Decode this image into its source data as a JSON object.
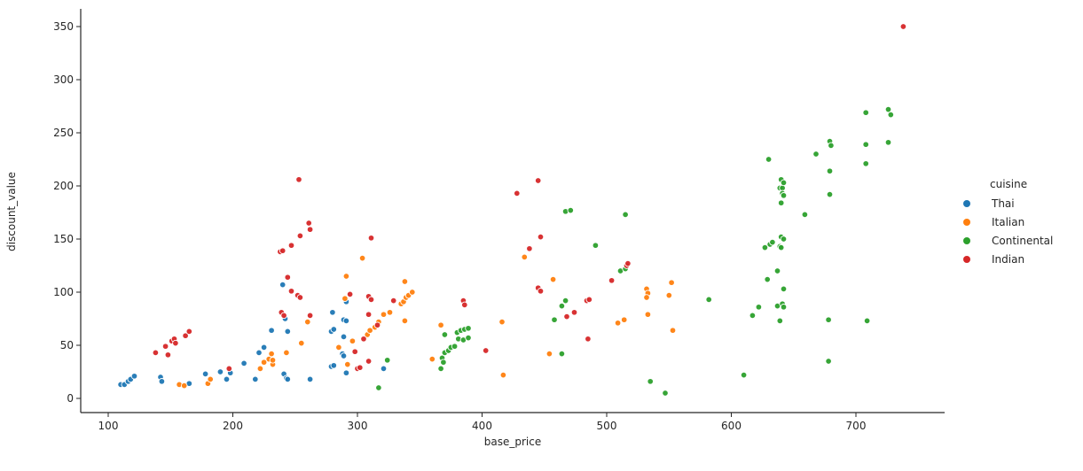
{
  "chart_data": {
    "type": "scatter",
    "title": "",
    "xlabel": "base_price",
    "ylabel": "discount_value",
    "xlim": [
      78,
      772
    ],
    "ylim": [
      -17,
      367
    ],
    "x_ticks": [
      100,
      200,
      300,
      400,
      500,
      600,
      700
    ],
    "y_ticks": [
      0,
      50,
      100,
      150,
      200,
      250,
      300,
      350
    ],
    "grid": false,
    "legend_title": "cuisine",
    "legend_position": "right",
    "marker": "circle-white-edge",
    "series": [
      {
        "name": "Thai",
        "color": "#1f77b4",
        "points": [
          [
            110,
            13
          ],
          [
            113,
            13
          ],
          [
            116,
            16
          ],
          [
            118,
            18
          ],
          [
            121,
            21
          ],
          [
            142,
            20
          ],
          [
            143,
            16
          ],
          [
            165,
            14
          ],
          [
            178,
            23
          ],
          [
            190,
            25
          ],
          [
            195,
            18
          ],
          [
            198,
            24
          ],
          [
            209,
            33
          ],
          [
            218,
            18
          ],
          [
            221,
            43
          ],
          [
            225,
            48
          ],
          [
            231,
            64
          ],
          [
            240,
            107
          ],
          [
            241,
            23
          ],
          [
            243,
            19
          ],
          [
            244,
            18
          ],
          [
            242,
            75
          ],
          [
            244,
            63
          ],
          [
            262,
            18
          ],
          [
            279,
            30
          ],
          [
            281,
            31
          ],
          [
            280,
            81
          ],
          [
            288,
            42
          ],
          [
            289,
            40
          ],
          [
            289,
            58
          ],
          [
            291,
            24
          ],
          [
            279,
            63
          ],
          [
            281,
            65
          ],
          [
            289,
            74
          ],
          [
            291,
            73
          ],
          [
            291,
            91
          ],
          [
            321,
            28
          ]
        ]
      },
      {
        "name": "Italian",
        "color": "#ff7f0e",
        "points": [
          [
            157,
            13
          ],
          [
            161,
            12
          ],
          [
            180,
            14
          ],
          [
            182,
            18
          ],
          [
            222,
            28
          ],
          [
            225,
            34
          ],
          [
            229,
            37
          ],
          [
            232,
            32
          ],
          [
            232,
            36
          ],
          [
            231,
            42
          ],
          [
            243,
            43
          ],
          [
            255,
            52
          ],
          [
            260,
            72
          ],
          [
            285,
            48
          ],
          [
            291,
            115
          ],
          [
            292,
            32
          ],
          [
            296,
            54
          ],
          [
            304,
            132
          ],
          [
            290,
            94
          ],
          [
            308,
            60
          ],
          [
            310,
            64
          ],
          [
            314,
            67
          ],
          [
            317,
            72
          ],
          [
            321,
            79
          ],
          [
            326,
            81
          ],
          [
            335,
            89
          ],
          [
            337,
            91
          ],
          [
            339,
            95
          ],
          [
            341,
            97
          ],
          [
            344,
            100
          ],
          [
            338,
            110
          ],
          [
            338,
            73
          ],
          [
            360,
            37
          ],
          [
            367,
            69
          ],
          [
            417,
            22
          ],
          [
            416,
            72
          ],
          [
            434,
            133
          ],
          [
            454,
            42
          ],
          [
            457,
            112
          ],
          [
            509,
            71
          ],
          [
            514,
            74
          ],
          [
            532,
            103
          ],
          [
            533,
            99
          ],
          [
            532,
            95
          ],
          [
            533,
            79
          ],
          [
            550,
            97
          ],
          [
            552,
            109
          ],
          [
            553,
            64
          ]
        ]
      },
      {
        "name": "Continental",
        "color": "#2ca02c",
        "points": [
          [
            317,
            10
          ],
          [
            324,
            36
          ],
          [
            370,
            43
          ],
          [
            373,
            45
          ],
          [
            368,
            38
          ],
          [
            369,
            34
          ],
          [
            367,
            28
          ],
          [
            370,
            60
          ],
          [
            375,
            48
          ],
          [
            378,
            49
          ],
          [
            380,
            62
          ],
          [
            383,
            64
          ],
          [
            386,
            65
          ],
          [
            389,
            66
          ],
          [
            381,
            56
          ],
          [
            385,
            55
          ],
          [
            389,
            57
          ],
          [
            464,
            42
          ],
          [
            458,
            74
          ],
          [
            464,
            87
          ],
          [
            467,
            92
          ],
          [
            467,
            176
          ],
          [
            471,
            177
          ],
          [
            491,
            144
          ],
          [
            511,
            120
          ],
          [
            515,
            122
          ],
          [
            515,
            173
          ],
          [
            535,
            16
          ],
          [
            547,
            5
          ],
          [
            582,
            93
          ],
          [
            610,
            22
          ],
          [
            617,
            78
          ],
          [
            622,
            86
          ],
          [
            627,
            142
          ],
          [
            629,
            112
          ],
          [
            630,
            225
          ],
          [
            631,
            145
          ],
          [
            633,
            147
          ],
          [
            637,
            120
          ],
          [
            639,
            143
          ],
          [
            640,
            142
          ],
          [
            639,
            73
          ],
          [
            637,
            87
          ],
          [
            641,
            89
          ],
          [
            642,
            86
          ],
          [
            639,
            198
          ],
          [
            641,
            198
          ],
          [
            640,
            206
          ],
          [
            642,
            203
          ],
          [
            641,
            193
          ],
          [
            642,
            191
          ],
          [
            640,
            184
          ],
          [
            640,
            152
          ],
          [
            642,
            150
          ],
          [
            642,
            103
          ],
          [
            659,
            173
          ],
          [
            668,
            230
          ],
          [
            678,
            74
          ],
          [
            678,
            35
          ],
          [
            679,
            242
          ],
          [
            680,
            238
          ],
          [
            679,
            214
          ],
          [
            679,
            192
          ],
          [
            708,
            221
          ],
          [
            708,
            269
          ],
          [
            708,
            239
          ],
          [
            709,
            73
          ],
          [
            726,
            272
          ],
          [
            728,
            267
          ],
          [
            726,
            241
          ]
        ]
      },
      {
        "name": "Indian",
        "color": "#d62728",
        "points": [
          [
            138,
            43
          ],
          [
            146,
            49
          ],
          [
            148,
            41
          ],
          [
            151,
            54
          ],
          [
            153,
            56
          ],
          [
            154,
            52
          ],
          [
            162,
            59
          ],
          [
            165,
            63
          ],
          [
            197,
            28
          ],
          [
            239,
            81
          ],
          [
            241,
            78
          ],
          [
            238,
            138
          ],
          [
            240,
            139
          ],
          [
            244,
            114
          ],
          [
            247,
            101
          ],
          [
            252,
            97
          ],
          [
            254,
            95
          ],
          [
            247,
            144
          ],
          [
            254,
            153
          ],
          [
            261,
            165
          ],
          [
            262,
            159
          ],
          [
            253,
            206
          ],
          [
            262,
            78
          ],
          [
            294,
            98
          ],
          [
            298,
            44
          ],
          [
            300,
            28
          ],
          [
            302,
            29
          ],
          [
            305,
            56
          ],
          [
            309,
            35
          ],
          [
            309,
            96
          ],
          [
            311,
            93
          ],
          [
            309,
            79
          ],
          [
            311,
            151
          ],
          [
            316,
            69
          ],
          [
            329,
            92
          ],
          [
            385,
            92
          ],
          [
            386,
            88
          ],
          [
            403,
            45
          ],
          [
            428,
            193
          ],
          [
            438,
            141
          ],
          [
            445,
            205
          ],
          [
            447,
            152
          ],
          [
            445,
            104
          ],
          [
            447,
            101
          ],
          [
            468,
            77
          ],
          [
            474,
            81
          ],
          [
            484,
            92
          ],
          [
            486,
            93
          ],
          [
            485,
            56
          ],
          [
            504,
            111
          ],
          [
            516,
            125
          ],
          [
            517,
            127
          ],
          [
            738,
            350
          ]
        ]
      }
    ]
  }
}
